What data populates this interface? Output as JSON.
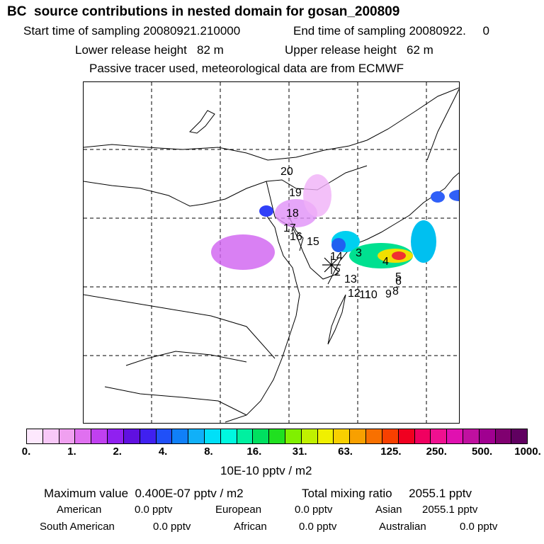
{
  "header": {
    "title": "BC  source contributions in nested domain for gosan_200809",
    "start_label": "Start time of sampling 20080921.210000",
    "end_label": "End time of sampling 20080922.     0",
    "lower_label": "Lower release height   82 m",
    "upper_label": "Upper release height   62 m",
    "tracer_note": "Passive tracer used, meteorological data are from ECMWF"
  },
  "map": {
    "trajectory_labels": [
      "20",
      "19",
      "18",
      "17",
      "16",
      "15",
      "14",
      "13",
      "12",
      "11",
      "10",
      "9",
      "8",
      "6",
      "5",
      "4",
      "3",
      "2"
    ],
    "receptor_marker": "star-marker-icon"
  },
  "colorbar": {
    "colors": [
      "#fde8fd",
      "#f8c8f8",
      "#f0a0f0",
      "#e070f0",
      "#c040f0",
      "#9020f0",
      "#6010e0",
      "#4020f0",
      "#2050f8",
      "#1080f8",
      "#10b0f8",
      "#00e0f8",
      "#00f8e0",
      "#00f0a0",
      "#00e060",
      "#20e020",
      "#80f000",
      "#c0f000",
      "#f0f000",
      "#f8d000",
      "#f8a000",
      "#f87000",
      "#f84000",
      "#f00020",
      "#f00060",
      "#f01090",
      "#e010b0",
      "#c010a0",
      "#a00090",
      "#800070",
      "#600060"
    ],
    "tick_labels": [
      "0.",
      "1.",
      "2.",
      "4.",
      "8.",
      "16.",
      "31.",
      "63.",
      "125.",
      "250.",
      "500.",
      "1000."
    ],
    "unit_label": "10E-10 pptv / m2"
  },
  "stats": {
    "max_label": "Maximum value  0.400E-07 pptv / m2",
    "total_label": "Total mixing ratio     2055.1 pptv",
    "american_label": "American",
    "american_value": "0.0 pptv",
    "european_label": "European",
    "european_value": "0.0 pptv",
    "asian_label": "Asian",
    "asian_value": "2055.1 pptv",
    "south_american_label": "South American",
    "south_american_value": "0.0 pptv",
    "african_label": "African",
    "african_value": "0.0 pptv",
    "australian_label": "Australian",
    "australian_value": "0.0 pptv"
  }
}
